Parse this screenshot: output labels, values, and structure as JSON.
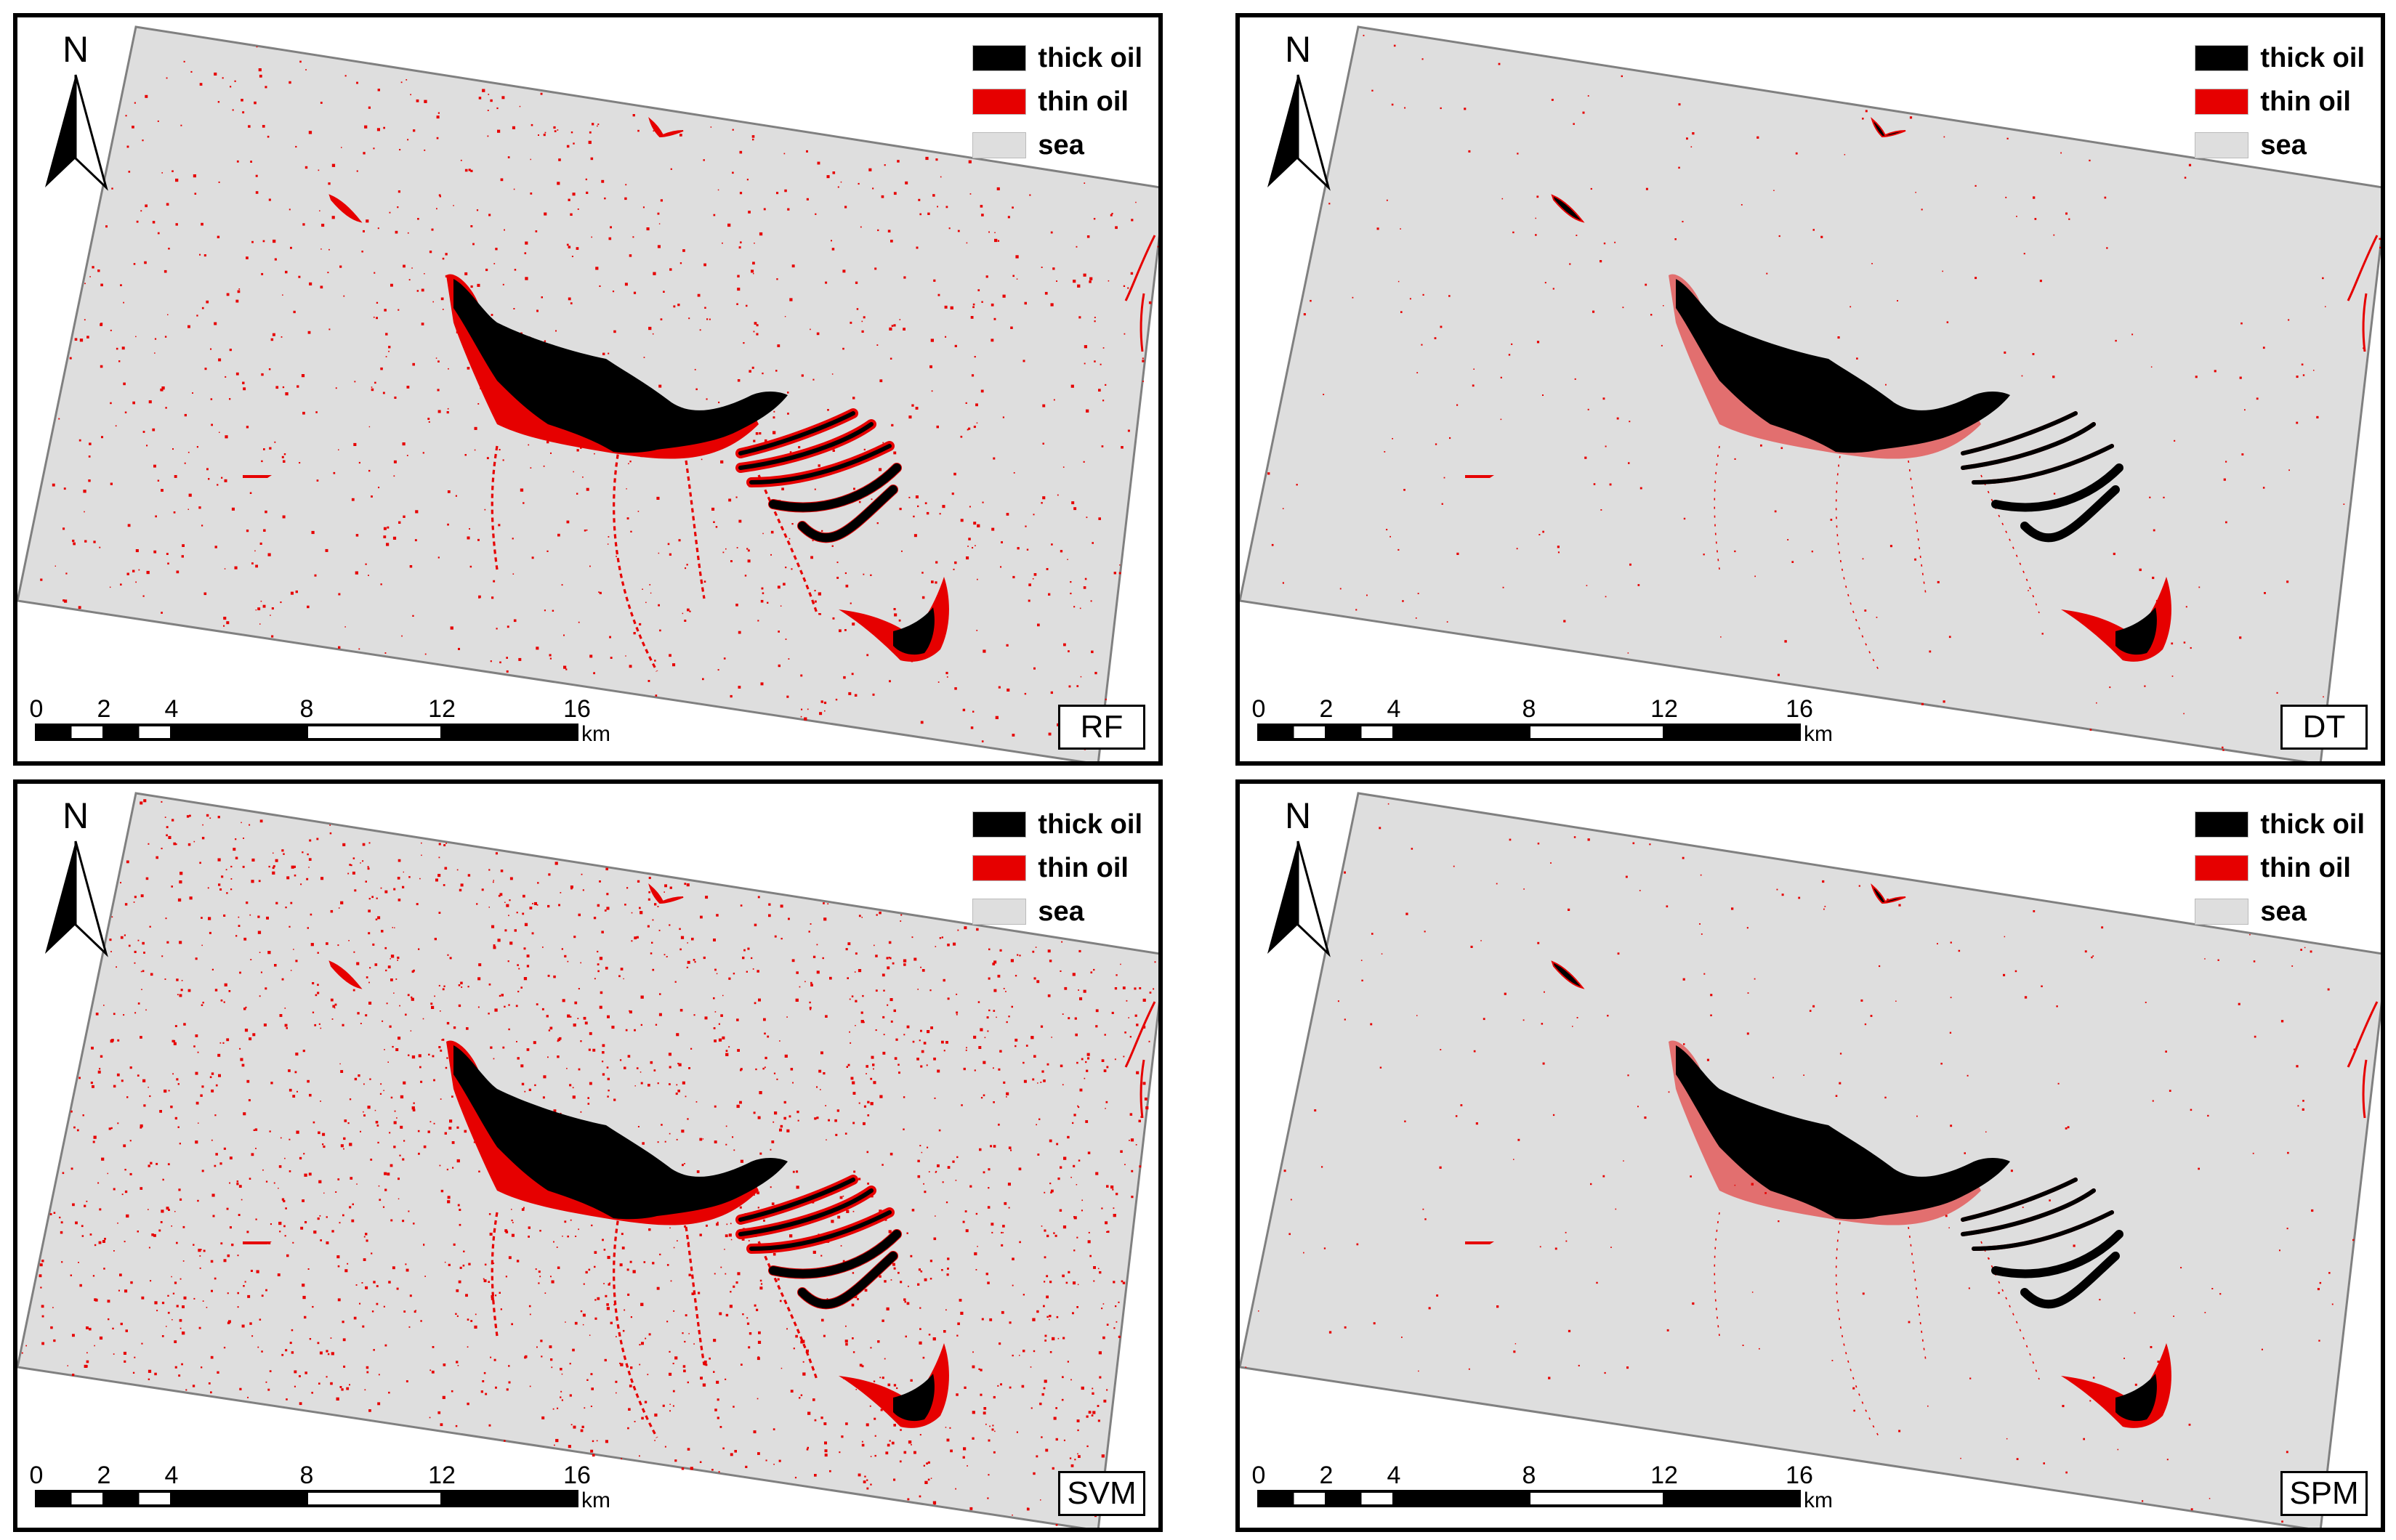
{
  "colors": {
    "thick_oil": "#000000",
    "thin_oil": "#e60000",
    "sea": "#dedede",
    "frame": "#808080"
  },
  "legend": [
    {
      "label": "thick oil",
      "color": "#000000"
    },
    {
      "label": "thin oil",
      "color": "#e60000"
    },
    {
      "label": "sea",
      "color": "#dedede"
    }
  ],
  "north_arrow": {
    "letter": "N",
    "icon": "north-arrow-icon"
  },
  "scale_bar": {
    "ticks": [
      "0",
      "2",
      "4",
      "8",
      "12",
      "16"
    ],
    "tick_values": [
      0,
      2,
      4,
      8,
      12,
      16
    ],
    "unit": "km"
  },
  "panels": [
    {
      "method": "RF",
      "thin_oil_noise": "high"
    },
    {
      "method": "DT",
      "thin_oil_noise": "low"
    },
    {
      "method": "SVM",
      "thin_oil_noise": "very high"
    },
    {
      "method": "SPM",
      "thin_oil_noise": "low"
    }
  ]
}
